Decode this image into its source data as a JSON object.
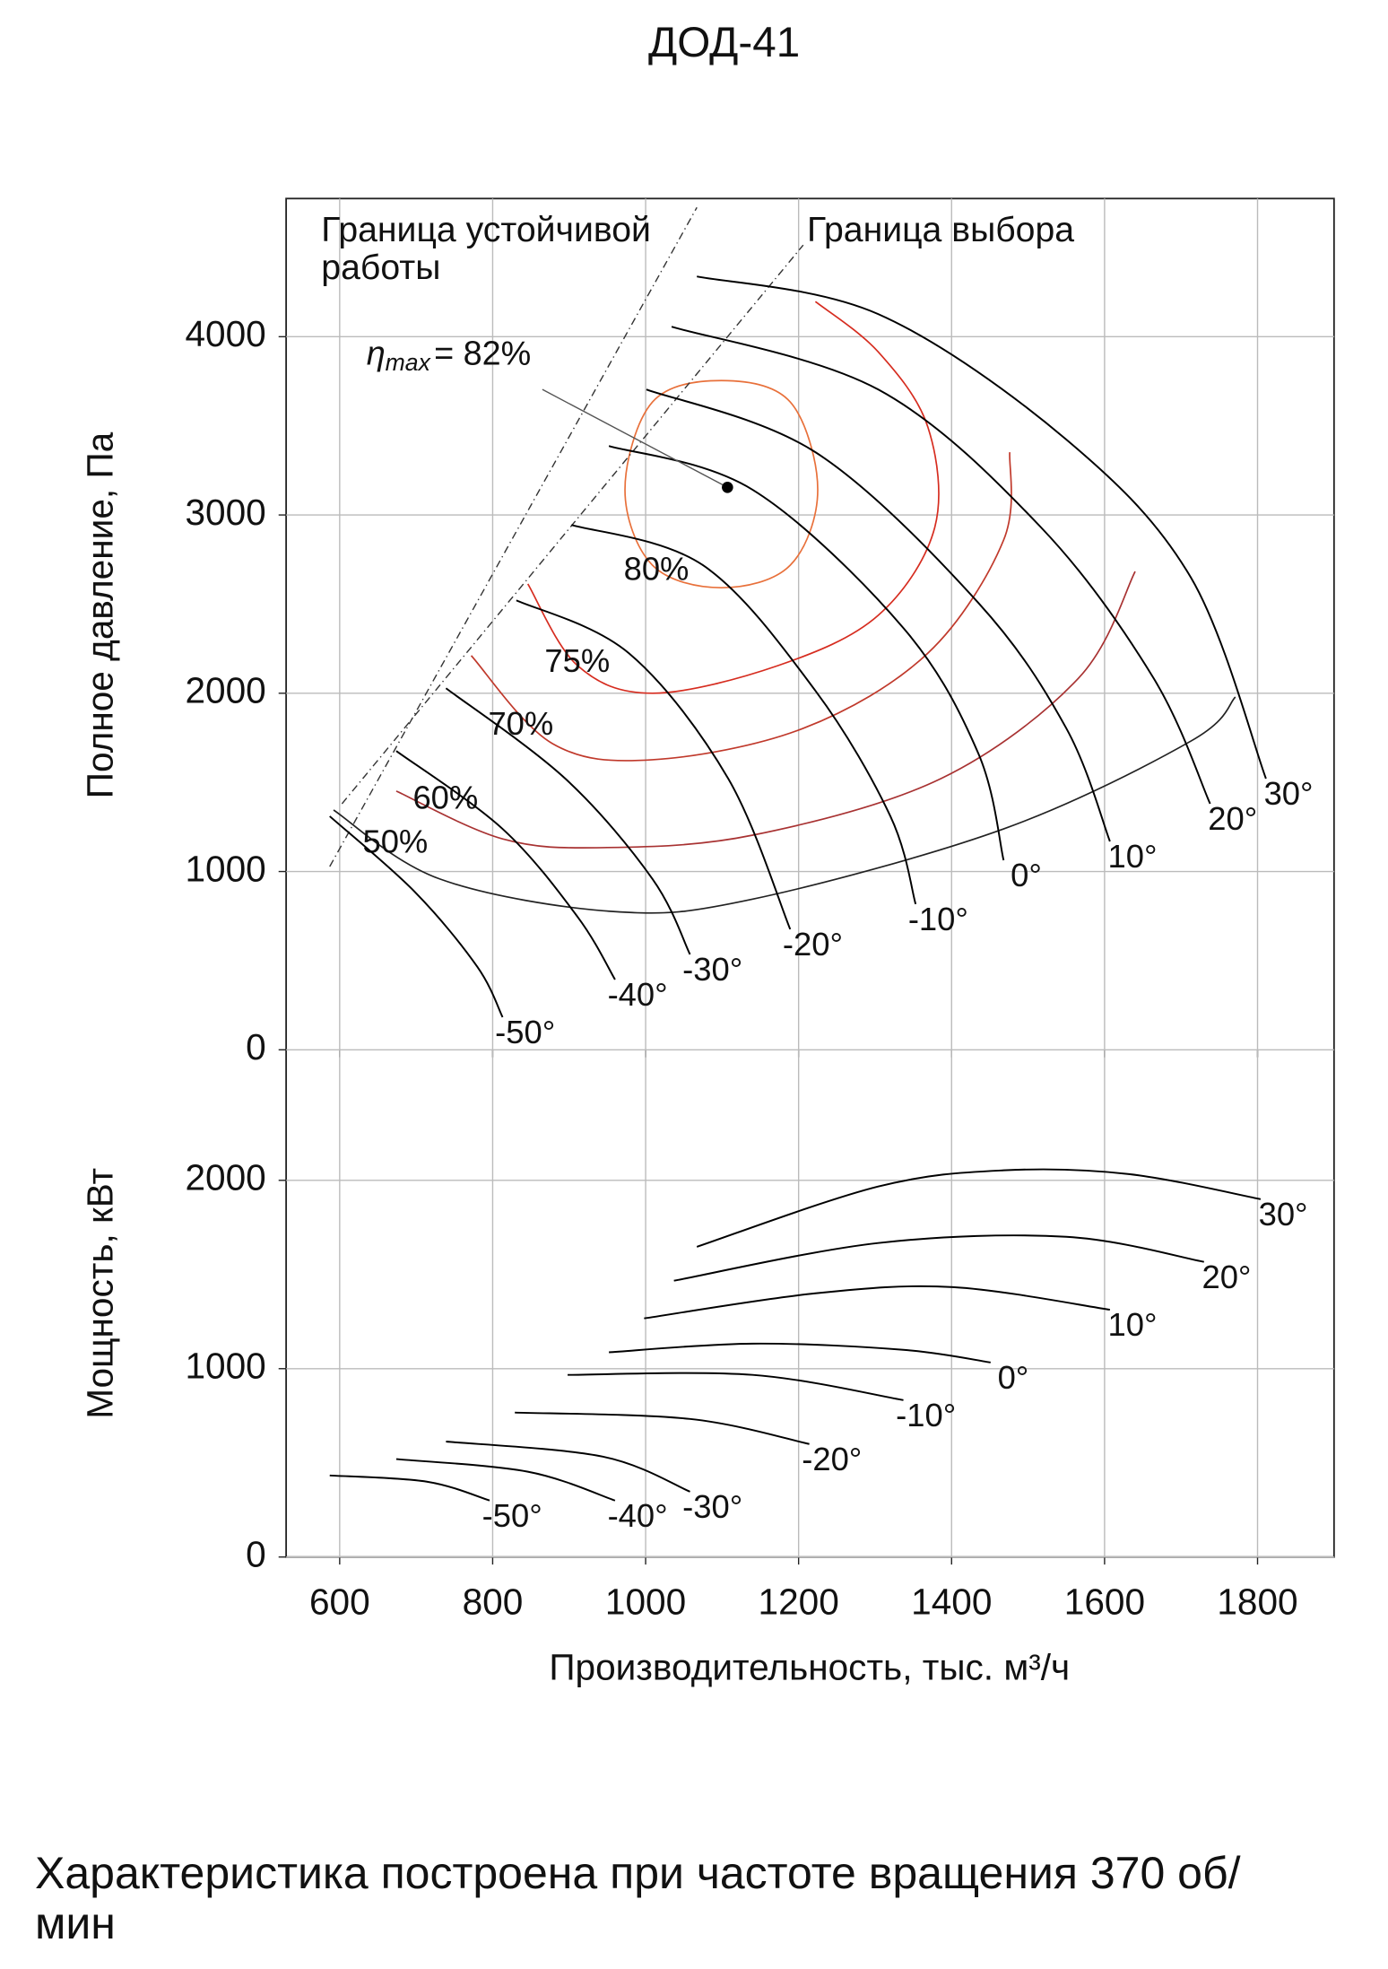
{
  "footer": "Характеристика построена при частоте вращения 370 об/мин",
  "chart_data": [
    {
      "type": "line",
      "title": "ДОД-41",
      "ylabel": "Полное давление, Па",
      "xlim": [
        530,
        1900
      ],
      "ylim": [
        0,
        4775
      ],
      "xticks": [
        600,
        800,
        1000,
        1200,
        1400,
        1600,
        1800
      ],
      "yticks": [
        0,
        1000,
        2000,
        3000,
        4000
      ],
      "grid": true,
      "series": [
        {
          "name": "30°",
          "color": "#000000",
          "x": [
            1067,
            1304,
            1550,
            1713,
            1811
          ],
          "values": [
            4338,
            4127,
            3423,
            2648,
            1521
          ]
        },
        {
          "name": "20°",
          "color": "#000000",
          "x": [
            1034,
            1304,
            1517,
            1664,
            1738
          ],
          "values": [
            4056,
            3704,
            2930,
            2085,
            1380
          ]
        },
        {
          "name": "10°",
          "color": "#000000",
          "x": [
            1001,
            1222,
            1435,
            1550,
            1607
          ],
          "values": [
            3704,
            3352,
            2507,
            1803,
            1169
          ]
        },
        {
          "name": "0°",
          "color": "#000000",
          "x": [
            952,
            1140,
            1337,
            1435,
            1468
          ],
          "values": [
            3387,
            3141,
            2366,
            1662,
            1063
          ]
        },
        {
          "name": "-10°",
          "color": "#000000",
          "x": [
            903,
            1075,
            1222,
            1320,
            1353
          ],
          "values": [
            2944,
            2718,
            2014,
            1310,
            817
          ]
        },
        {
          "name": "-20°",
          "color": "#000000",
          "x": [
            831,
            978,
            1108,
            1189
          ],
          "values": [
            2521,
            2225,
            1521,
            676
          ]
        },
        {
          "name": "-30°",
          "color": "#000000",
          "x": [
            739,
            895,
            1009,
            1058
          ],
          "values": [
            2028,
            1521,
            958,
            535
          ]
        },
        {
          "name": "-40°",
          "color": "#000000",
          "x": [
            674,
            813,
            911,
            960
          ],
          "values": [
            1676,
            1239,
            746,
            394
          ]
        },
        {
          "name": "-50°",
          "color": "#000000",
          "x": [
            587,
            698,
            780,
            813
          ],
          "values": [
            1310,
            887,
            465,
            183
          ]
        }
      ],
      "contours": [
        {
          "name": "80%",
          "color": "#e8703a",
          "closed": true,
          "x": [
            973,
            1009,
            1099,
            1189,
            1225,
            1189,
            1099,
            1009
          ],
          "values": [
            3141,
            3634,
            3754,
            3634,
            3141,
            2718,
            2592,
            2718
          ]
        },
        {
          "name": "75%",
          "color": "#d62c1f",
          "closed": false,
          "x": [
            846,
            911,
            1009,
            1173,
            1304,
            1378,
            1369,
            1304,
            1222
          ],
          "values": [
            2613,
            2155,
            2000,
            2155,
            2437,
            2930,
            3493,
            3915,
            4197
          ]
        },
        {
          "name": "70%",
          "color": "#c0392b",
          "closed": false,
          "x": [
            772,
            878,
            1009,
            1206,
            1369,
            1468,
            1476
          ],
          "values": [
            2211,
            1718,
            1627,
            1803,
            2225,
            2859,
            3352
          ]
        },
        {
          "name": "60%",
          "color": "#a83232",
          "closed": false,
          "x": [
            674,
            813,
            944,
            1140,
            1386,
            1566,
            1640
          ],
          "values": [
            1451,
            1183,
            1134,
            1204,
            1521,
            2085,
            2683
          ]
        },
        {
          "name": "50%",
          "color": "#222222",
          "closed": false,
          "x": [
            592,
            731,
            960,
            1140,
            1468,
            1713,
            1771
          ],
          "values": [
            1345,
            958,
            775,
            845,
            1239,
            1732,
            1979
          ]
        }
      ],
      "boundaries": [
        {
          "name": "Граница устойчивой работы",
          "color": "#333333",
          "x": [
            587,
            1067
          ],
          "values": [
            1028,
            4725
          ]
        },
        {
          "name": "Граница выбора",
          "color": "#333333",
          "x": [
            603,
            1206
          ],
          "values": [
            1380,
            4514
          ]
        }
      ],
      "eta_max": {
        "symbol": "η",
        "subscript": "max",
        "text": "= 82%",
        "x": [
          865,
          1107
        ],
        "values": [
          3704,
          3155
        ]
      }
    },
    {
      "type": "line",
      "ylabel": "Мощность, кВт",
      "xlabel": "Производительность, тыс. м³/ч",
      "xlim": [
        530,
        1900
      ],
      "ylim": [
        0,
        2693
      ],
      "xticks": [
        600,
        800,
        1000,
        1200,
        1400,
        1600,
        1800
      ],
      "yticks": [
        0,
        1000,
        2000
      ],
      "grid": true,
      "series": [
        {
          "name": "30°",
          "color": "#000000",
          "x": [
            1067,
            1304,
            1468,
            1632,
            1804
          ],
          "values": [
            1647,
            1967,
            2053,
            2033,
            1900
          ]
        },
        {
          "name": "20°",
          "color": "#000000",
          "x": [
            1037,
            1304,
            1550,
            1730
          ],
          "values": [
            1467,
            1667,
            1700,
            1567
          ]
        },
        {
          "name": "10°",
          "color": "#000000",
          "x": [
            998,
            1222,
            1402,
            1607
          ],
          "values": [
            1267,
            1400,
            1433,
            1313
          ]
        },
        {
          "name": "0°",
          "color": "#000000",
          "x": [
            952,
            1140,
            1337,
            1451
          ],
          "values": [
            1087,
            1133,
            1100,
            1033
          ]
        },
        {
          "name": "-10°",
          "color": "#000000",
          "x": [
            898,
            1140,
            1337
          ],
          "values": [
            967,
            967,
            833
          ]
        },
        {
          "name": "-20°",
          "color": "#000000",
          "x": [
            829,
            1058,
            1214
          ],
          "values": [
            767,
            733,
            600
          ]
        },
        {
          "name": "-30°",
          "color": "#000000",
          "x": [
            739,
            944,
            1058
          ],
          "values": [
            613,
            533,
            347
          ]
        },
        {
          "name": "-40°",
          "color": "#000000",
          "x": [
            674,
            846,
            960
          ],
          "values": [
            520,
            453,
            300
          ]
        },
        {
          "name": "-50°",
          "color": "#000000",
          "x": [
            587,
            714,
            796
          ],
          "values": [
            433,
            400,
            300
          ]
        }
      ]
    }
  ]
}
